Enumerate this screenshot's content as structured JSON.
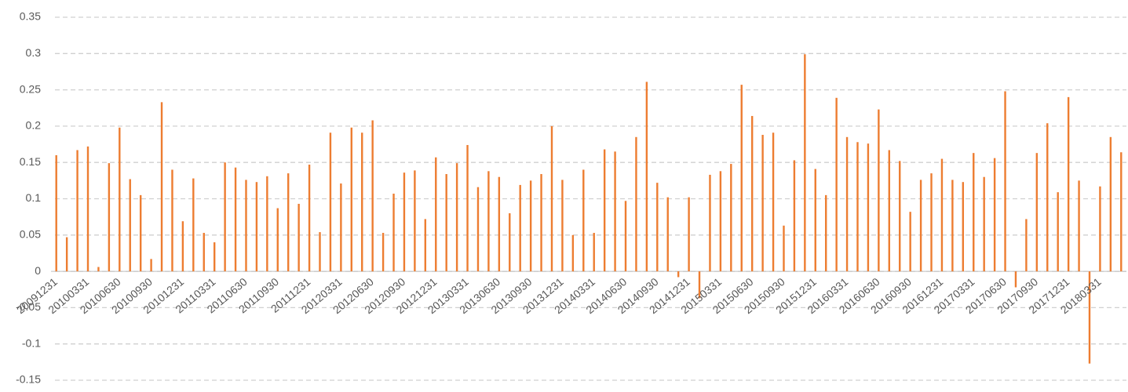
{
  "chart_data": {
    "type": "bar",
    "color": "#ed7d31",
    "grid": true,
    "categories": [
      "20091231",
      null,
      null,
      "20100331",
      null,
      null,
      "20100630",
      null,
      null,
      "20100930",
      null,
      null,
      "20101231",
      null,
      null,
      "20110331",
      null,
      null,
      "20110630",
      null,
      null,
      "20110930",
      null,
      null,
      "20111231",
      null,
      null,
      "20120331",
      null,
      null,
      "20120630",
      null,
      null,
      "20120930",
      null,
      null,
      "20121231",
      null,
      null,
      "20130331",
      null,
      null,
      "20130630",
      null,
      null,
      "20130930",
      null,
      null,
      "20131231",
      null,
      null,
      "20140331",
      null,
      null,
      "20140630",
      null,
      null,
      "20140930",
      null,
      null,
      "20141231",
      null,
      null,
      "20150331",
      null,
      null,
      "20150630",
      null,
      null,
      "20150930",
      null,
      null,
      "20151231",
      null,
      null,
      "20160331",
      null,
      null,
      "20160630",
      null,
      null,
      "20160930",
      null,
      null,
      "20161231",
      null,
      null,
      "20170331",
      null,
      null,
      "20170630",
      null,
      null,
      "20170930",
      null,
      null,
      "20171231",
      null,
      null,
      "20180331",
      null,
      null
    ],
    "values": [
      0.16,
      0.047,
      0.167,
      0.172,
      0.006,
      0.149,
      0.198,
      0.127,
      0.105,
      0.017,
      0.233,
      0.14,
      0.069,
      0.128,
      0.053,
      0.04,
      0.15,
      0.143,
      0.126,
      0.123,
      0.131,
      0.087,
      0.135,
      0.093,
      0.147,
      0.054,
      0.191,
      0.121,
      0.198,
      0.191,
      0.208,
      0.053,
      0.107,
      0.136,
      0.139,
      0.072,
      0.157,
      0.134,
      0.149,
      0.174,
      0.116,
      0.138,
      0.13,
      0.08,
      0.119,
      0.125,
      0.134,
      0.2,
      0.126,
      0.05,
      0.14,
      0.053,
      0.168,
      0.165,
      0.097,
      0.185,
      0.261,
      0.122,
      0.102,
      -0.008,
      0.102,
      -0.037,
      0.133,
      0.138,
      0.148,
      0.257,
      0.214,
      0.188,
      0.191,
      0.063,
      0.153,
      0.299,
      0.141,
      0.105,
      0.239,
      0.185,
      0.178,
      0.176,
      0.223,
      0.167,
      0.152,
      0.082,
      0.126,
      0.135,
      0.155,
      0.126,
      0.123,
      0.163,
      0.13,
      0.156,
      0.248,
      -0.022,
      0.072,
      0.163,
      0.204,
      0.109,
      0.24,
      0.125,
      -0.127,
      0.117,
      0.185,
      0.164
    ],
    "ylim": [
      -0.15,
      0.35
    ],
    "yticks": [
      -0.15,
      -0.1,
      -0.05,
      0,
      0.05,
      0.1,
      0.15,
      0.2,
      0.25,
      0.3,
      0.35
    ]
  }
}
